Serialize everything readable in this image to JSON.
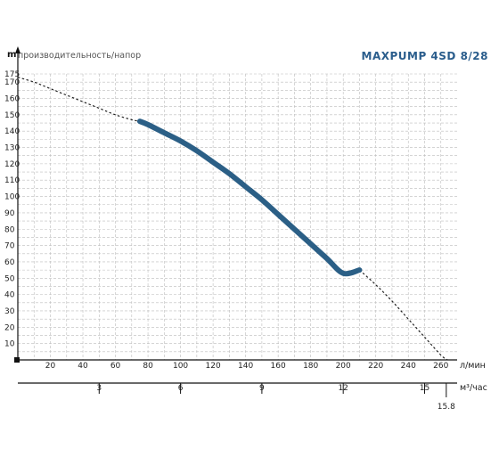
{
  "chart_data": {
    "type": "line",
    "title": "MAXPUMP 4SD 8/28",
    "y_unit": "m",
    "ylabel": "производительность/напор",
    "xlabel": "л/мин",
    "x2label": "м³/час",
    "xlim": [
      0,
      270
    ],
    "ylim": [
      0,
      175
    ],
    "x_ticks": [
      20,
      40,
      60,
      80,
      100,
      120,
      140,
      160,
      180,
      200,
      220,
      240,
      260
    ],
    "y_ticks": [
      10,
      20,
      30,
      40,
      50,
      60,
      70,
      80,
      90,
      100,
      110,
      120,
      130,
      140,
      150,
      160,
      170,
      175
    ],
    "x2_ticks": [
      3,
      6,
      9,
      12,
      15
    ],
    "x2_max_label": "15.8",
    "x2_max_value": 15.8,
    "grid": true,
    "series": [
      {
        "role": "extrapolated",
        "style": "dashed",
        "color": "#222222",
        "x": [
          0,
          10,
          20,
          30,
          40,
          50,
          60,
          70,
          75,
          210,
          220,
          230,
          240,
          250,
          260,
          264
        ],
        "y": [
          173,
          170,
          166,
          162,
          158,
          154,
          150,
          147,
          146,
          55,
          46,
          36,
          25,
          14,
          3,
          0
        ]
      },
      {
        "role": "working-range",
        "style": "solid",
        "color": "#2b5f86",
        "x": [
          75,
          80,
          90,
          100,
          110,
          120,
          130,
          140,
          150,
          160,
          170,
          180,
          190,
          200,
          210
        ],
        "y": [
          146,
          144,
          139,
          134,
          128,
          121,
          114,
          106,
          98,
          89,
          80,
          71,
          62,
          53,
          55
        ]
      }
    ]
  }
}
